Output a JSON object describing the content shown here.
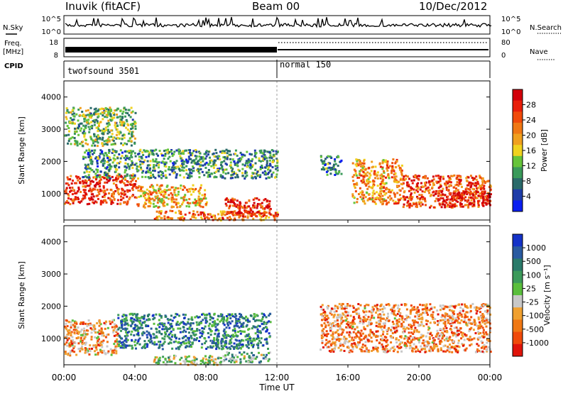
{
  "header": {
    "station": "Inuvik (fitACF)",
    "beam": "Beam 00",
    "date": "10/Dec/2012"
  },
  "side_labels": {
    "nsky": "N.Sky",
    "nsearch": "N.Search",
    "freq_line1": "Freq.",
    "freq_line2": "[MHz]",
    "cpid": "CPID",
    "nave": "Nave"
  },
  "chart_data": [
    {
      "type": "line",
      "panel": "noise",
      "left_ticks": [
        "10^5",
        "10^0"
      ],
      "right_ticks": [
        "10^5",
        "10^0"
      ],
      "series": [
        {
          "name": "N.Sky",
          "style": "solid"
        },
        {
          "name": "N.Search",
          "style": "dotted"
        }
      ]
    },
    {
      "type": "line",
      "panel": "freq-nave",
      "left_ticks": [
        "18",
        "8"
      ],
      "right_ticks": [
        "80",
        "0"
      ],
      "series": [
        {
          "name": "Freq",
          "segments": [
            {
              "x_start_h": 0,
              "x_end_h": 12,
              "value_mhz": 10.5
            },
            {
              "x_start_h": 12,
              "x_end_h": 24,
              "value_mhz": 11.5
            }
          ]
        },
        {
          "name": "Nave",
          "style": "dotted",
          "segments": [
            {
              "x_start_h": 0,
              "x_end_h": 12,
              "value": 40
            },
            {
              "x_start_h": 12,
              "x_end_h": 24,
              "value": 68
            }
          ]
        }
      ]
    },
    {
      "type": "table",
      "panel": "cpid",
      "programs": [
        {
          "label": "twofsound 3501",
          "start_h": 0,
          "end_h": 12
        },
        {
          "label": "normal 150",
          "start_h": 12,
          "end_h": 24
        }
      ]
    },
    {
      "type": "heatmap",
      "panel": "power",
      "ylabel": "Slant Range [km]",
      "yticks": [
        "1000",
        "2000",
        "3000",
        "4000"
      ],
      "ylim": [
        180,
        4500
      ],
      "xlim": [
        0,
        24
      ],
      "colorbar": {
        "label": "Power [dB]",
        "ticks": [
          "4",
          "8",
          "12",
          "16",
          "20",
          "24",
          "28"
        ],
        "colors": [
          "#0a1ef0",
          "#1e3ca8",
          "#2a6a6a",
          "#3a9a5a",
          "#66c43a",
          "#f0d21e",
          "#f0a01e",
          "#f07814",
          "#f04a0a",
          "#e81e0a",
          "#d2000a"
        ]
      },
      "regions": [
        {
          "start_h": 0.0,
          "end_h": 4.0,
          "r_min": 700,
          "r_max": 1600,
          "level": 0.82
        },
        {
          "start_h": 4.0,
          "end_h": 8.0,
          "r_min": 600,
          "r_max": 1300,
          "level": 0.6
        },
        {
          "start_h": 5.0,
          "end_h": 12.0,
          "r_min": 200,
          "r_max": 500,
          "level": 0.7
        },
        {
          "start_h": 9.0,
          "end_h": 11.6,
          "r_min": 300,
          "r_max": 900,
          "level": 0.88
        },
        {
          "start_h": 1.0,
          "end_h": 12.0,
          "r_min": 1500,
          "r_max": 2400,
          "level": 0.3
        },
        {
          "start_h": 0.0,
          "end_h": 4.0,
          "r_min": 2500,
          "r_max": 3700,
          "level": 0.4
        },
        {
          "start_h": 14.4,
          "end_h": 15.6,
          "r_min": 1600,
          "r_max": 2200,
          "level": 0.25
        },
        {
          "start_h": 16.2,
          "end_h": 19.0,
          "r_min": 700,
          "r_max": 2100,
          "level": 0.65
        },
        {
          "start_h": 19.0,
          "end_h": 24.0,
          "r_min": 600,
          "r_max": 1600,
          "level": 0.78
        },
        {
          "start_h": 21.0,
          "end_h": 24.0,
          "r_min": 600,
          "r_max": 1100,
          "level": 0.92
        }
      ]
    },
    {
      "type": "heatmap",
      "panel": "velocity",
      "ylabel": "Slant Range [km]",
      "xlabel": "Time UT",
      "xticks": [
        "00:00",
        "04:00",
        "08:00",
        "12:00",
        "16:00",
        "20:00",
        "00:00"
      ],
      "yticks": [
        "1000",
        "2000",
        "3000",
        "4000"
      ],
      "ylim": [
        180,
        4500
      ],
      "xlim": [
        0,
        24
      ],
      "colorbar": {
        "label": "Velocity [m s⁻¹]",
        "ticks": [
          "1000",
          "500",
          "100",
          "25",
          "-25",
          "-100",
          "-500",
          "-1000"
        ],
        "colors": [
          "#1432c8",
          "#2a5aa0",
          "#2a7a6a",
          "#3c9a5a",
          "#5abe3c",
          "#c8c8c8",
          "#f0a030",
          "#f07814",
          "#f04a0a",
          "#e0140a"
        ]
      },
      "regions": [
        {
          "start_h": 0.0,
          "end_h": 3.0,
          "r_min": 500,
          "r_max": 1600,
          "level": 0.7
        },
        {
          "start_h": 3.0,
          "end_h": 11.6,
          "r_min": 700,
          "r_max": 1800,
          "level": 0.25
        },
        {
          "start_h": 5.0,
          "end_h": 9.0,
          "r_min": 200,
          "r_max": 500,
          "level": 0.5
        },
        {
          "start_h": 9.0,
          "end_h": 11.6,
          "r_min": 250,
          "r_max": 600,
          "level": 0.4
        },
        {
          "start_h": 14.4,
          "end_h": 24.0,
          "r_min": 600,
          "r_max": 2100,
          "level": 0.72
        }
      ]
    }
  ]
}
